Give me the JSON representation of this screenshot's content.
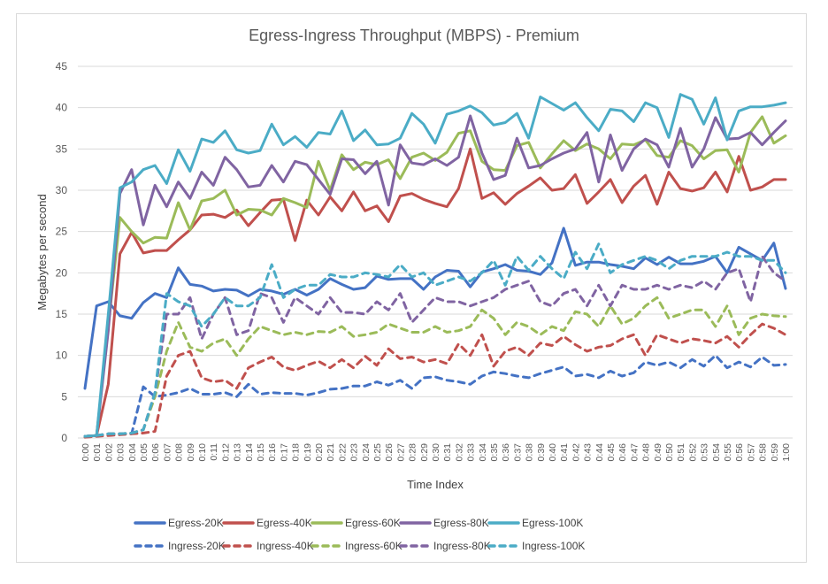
{
  "chart_data": {
    "type": "line",
    "title": "Egress-Ingress Throughput (MBPS) - Premium",
    "xlabel": "Time Index",
    "ylabel": "Megabytes per second",
    "ylim": [
      0,
      45
    ],
    "yticks": [
      0,
      5,
      10,
      15,
      20,
      25,
      30,
      35,
      40,
      45
    ],
    "grid": true,
    "legend_position": "bottom",
    "categories": [
      "0:00",
      "0:01",
      "0:02",
      "0:03",
      "0:04",
      "0:05",
      "0:06",
      "0:07",
      "0:08",
      "0:09",
      "0:10",
      "0:11",
      "0:12",
      "0:13",
      "0:14",
      "0:15",
      "0:16",
      "0:17",
      "0:18",
      "0:19",
      "0:20",
      "0:21",
      "0:22",
      "0:23",
      "0:24",
      "0:25",
      "0:26",
      "0:27",
      "0:28",
      "0:29",
      "0:30",
      "0:31",
      "0:32",
      "0:33",
      "0:34",
      "0:35",
      "0:36",
      "0:37",
      "0:38",
      "0:39",
      "0:40",
      "0:41",
      "0:42",
      "0:43",
      "0:44",
      "0:45",
      "0:46",
      "0:47",
      "0:48",
      "0:49",
      "0:50",
      "0:51",
      "0:52",
      "0:53",
      "0:54",
      "0:55",
      "0:56",
      "0:57",
      "0:58",
      "0:59",
      "1:00"
    ],
    "series": [
      {
        "name": "Egress-20K",
        "color": "#4472C4",
        "dash": false,
        "values": [
          6.0,
          16.0,
          16.5,
          14.8,
          14.5,
          16.4,
          17.5,
          17.0,
          20.6,
          18.6,
          18.4,
          17.8,
          18.0,
          17.9,
          17.2,
          18.0,
          17.8,
          17.4,
          18.0,
          17.3,
          18.0,
          19.3,
          18.6,
          18.0,
          18.2,
          19.6,
          19.2,
          19.3,
          19.3,
          18.0,
          19.5,
          20.3,
          20.2,
          18.3,
          20.1,
          20.5,
          21.0,
          20.3,
          20.2,
          19.8,
          21.2,
          25.4,
          20.9,
          21.3,
          21.3,
          21.0,
          20.8,
          20.5,
          21.8,
          21.0,
          21.9,
          21.1,
          21.1,
          21.4,
          22.0,
          20.0,
          23.1,
          22.3,
          21.5,
          23.6,
          18.1
        ]
      },
      {
        "name": "Egress-40K",
        "color": "#C0504D",
        "dash": false,
        "values": [
          0.2,
          0.3,
          6.5,
          22.3,
          24.9,
          22.4,
          22.7,
          22.7,
          24.0,
          25.2,
          27.0,
          27.1,
          26.7,
          27.6,
          25.7,
          27.3,
          28.8,
          28.9,
          23.9,
          28.8,
          27.0,
          29.2,
          27.5,
          29.8,
          27.5,
          28.1,
          26.2,
          29.3,
          29.6,
          28.9,
          28.4,
          28.0,
          30.2,
          35.0,
          29.0,
          29.7,
          28.3,
          29.6,
          30.5,
          31.5,
          30.0,
          30.2,
          31.9,
          28.4,
          29.8,
          31.3,
          28.5,
          30.5,
          31.8,
          28.3,
          32.2,
          30.2,
          29.9,
          30.3,
          32.2,
          29.8,
          34.1,
          30.0,
          30.4,
          31.3,
          31.3
        ]
      },
      {
        "name": "Egress-60K",
        "color": "#9BBB59",
        "dash": false,
        "values": [
          0.2,
          0.3,
          13.5,
          26.7,
          25.0,
          23.6,
          24.3,
          24.2,
          28.5,
          25.2,
          28.7,
          29.0,
          30.0,
          27.0,
          27.7,
          27.6,
          27.0,
          29.0,
          28.5,
          27.9,
          33.5,
          30.0,
          34.3,
          32.5,
          33.4,
          33.1,
          33.7,
          31.4,
          34.0,
          34.5,
          33.6,
          34.6,
          36.9,
          37.2,
          33.5,
          32.5,
          32.4,
          35.4,
          35.8,
          32.7,
          34.4,
          36.0,
          34.8,
          35.6,
          35.0,
          33.8,
          35.6,
          35.5,
          36.1,
          34.2,
          34.0,
          36.0,
          35.4,
          33.8,
          34.8,
          34.9,
          32.2,
          37.0,
          38.9,
          35.7,
          36.6
        ]
      },
      {
        "name": "Egress-80K",
        "color": "#8064A2",
        "dash": false,
        "values": [
          0.2,
          0.3,
          13.0,
          29.6,
          32.5,
          25.8,
          30.6,
          28.0,
          31.0,
          29.0,
          32.2,
          30.6,
          34.0,
          32.5,
          30.4,
          30.6,
          33.0,
          31.0,
          33.5,
          33.1,
          31.3,
          29.5,
          33.8,
          33.7,
          32.0,
          33.5,
          28.2,
          35.5,
          33.3,
          33.1,
          33.8,
          33.0,
          34.0,
          39.0,
          34.5,
          31.3,
          31.8,
          36.3,
          32.7,
          33.0,
          33.8,
          34.5,
          35.0,
          37.0,
          31.0,
          36.7,
          32.4,
          35.0,
          36.2,
          35.5,
          32.8,
          37.5,
          32.8,
          35.0,
          38.8,
          36.2,
          36.3,
          37.0,
          35.5,
          37.0,
          38.4
        ]
      },
      {
        "name": "Egress-100K",
        "color": "#4BACC6",
        "dash": false,
        "values": [
          0.2,
          0.3,
          15.0,
          30.3,
          31.0,
          32.5,
          33.0,
          30.8,
          34.9,
          32.3,
          36.2,
          35.8,
          37.2,
          34.9,
          34.5,
          34.8,
          38.0,
          35.5,
          36.5,
          35.2,
          37.0,
          36.8,
          39.6,
          36.0,
          37.3,
          35.5,
          35.6,
          36.3,
          39.3,
          38.0,
          35.7,
          39.2,
          39.6,
          40.2,
          39.4,
          37.9,
          38.2,
          39.3,
          36.3,
          41.3,
          40.5,
          39.7,
          40.6,
          38.8,
          37.2,
          39.8,
          39.6,
          38.3,
          40.6,
          40.0,
          36.4,
          41.6,
          41.0,
          38.0,
          41.2,
          36.1,
          39.6,
          40.1,
          40.1,
          40.3,
          40.6
        ]
      },
      {
        "name": "Ingress-20K",
        "color": "#4472C4",
        "dash": true,
        "values": [
          0.2,
          0.3,
          0.5,
          0.5,
          0.5,
          6.2,
          5.0,
          5.2,
          5.5,
          6.0,
          5.3,
          5.3,
          5.5,
          5.0,
          6.5,
          5.3,
          5.5,
          5.4,
          5.4,
          5.2,
          5.5,
          5.9,
          6.0,
          6.3,
          6.3,
          6.8,
          6.4,
          7.0,
          6.0,
          7.3,
          7.4,
          7.0,
          6.8,
          6.5,
          7.5,
          8.0,
          7.8,
          7.5,
          7.3,
          7.8,
          8.2,
          8.6,
          7.5,
          7.7,
          7.3,
          8.1,
          7.5,
          7.9,
          9.2,
          8.8,
          9.2,
          8.5,
          9.5,
          8.7,
          10.0,
          8.5,
          9.2,
          8.6,
          9.8,
          8.8,
          8.9
        ]
      },
      {
        "name": "Ingress-40K",
        "color": "#C0504D",
        "dash": true,
        "values": [
          0.1,
          0.2,
          0.3,
          0.4,
          0.5,
          0.6,
          0.8,
          7.5,
          10.0,
          10.5,
          7.3,
          6.8,
          7.0,
          6.0,
          8.5,
          9.2,
          9.8,
          8.6,
          8.2,
          8.8,
          9.3,
          8.5,
          9.5,
          8.5,
          9.9,
          8.8,
          10.8,
          9.6,
          9.8,
          9.2,
          9.5,
          9.0,
          11.4,
          10.0,
          12.5,
          8.7,
          10.5,
          11.0,
          10.0,
          11.5,
          11.2,
          12.3,
          11.3,
          10.5,
          11.0,
          11.2,
          12.0,
          12.5,
          10.0,
          12.5,
          12.0,
          11.5,
          12.0,
          11.8,
          11.5,
          12.3,
          11.0,
          12.5,
          13.8,
          13.3,
          12.5
        ]
      },
      {
        "name": "Ingress-60K",
        "color": "#9BBB59",
        "dash": true,
        "values": [
          0.2,
          0.3,
          0.5,
          0.5,
          0.6,
          1.0,
          5.0,
          10.5,
          14.0,
          11.0,
          10.5,
          11.5,
          12.0,
          10.0,
          12.0,
          13.5,
          13.0,
          12.5,
          12.8,
          12.5,
          12.9,
          12.8,
          13.5,
          12.3,
          12.5,
          12.8,
          13.8,
          13.3,
          12.8,
          12.8,
          13.5,
          12.8,
          13.0,
          13.5,
          15.5,
          14.5,
          12.5,
          14.0,
          13.5,
          12.5,
          13.5,
          13.0,
          15.3,
          15.0,
          13.5,
          16.0,
          13.8,
          14.5,
          16.0,
          17.0,
          14.5,
          15.0,
          15.5,
          15.5,
          13.5,
          16.0,
          12.5,
          14.5,
          15.0,
          14.8,
          14.7
        ]
      },
      {
        "name": "Ingress-80K",
        "color": "#8064A2",
        "dash": true,
        "values": [
          0.2,
          0.3,
          0.5,
          0.5,
          0.6,
          1.0,
          5.5,
          15.0,
          15.0,
          17.0,
          12.0,
          15.0,
          17.0,
          12.5,
          13.0,
          17.5,
          17.0,
          14.0,
          17.0,
          16.0,
          15.0,
          17.0,
          15.2,
          15.2,
          15.0,
          16.5,
          15.5,
          17.5,
          14.0,
          15.5,
          17.0,
          16.5,
          16.5,
          16.0,
          16.5,
          17.0,
          18.0,
          18.5,
          19.0,
          16.5,
          16.0,
          17.5,
          18.0,
          16.0,
          18.5,
          16.0,
          18.5,
          18.0,
          18.0,
          18.5,
          18.0,
          18.5,
          18.2,
          19.0,
          18.0,
          20.0,
          20.5,
          16.5,
          22.0,
          20.0,
          19.0
        ]
      },
      {
        "name": "Ingress-100K",
        "color": "#4BACC6",
        "dash": true,
        "values": [
          0.2,
          0.3,
          0.5,
          0.5,
          0.6,
          1.0,
          5.5,
          17.5,
          16.5,
          16.0,
          13.5,
          15.0,
          17.0,
          16.0,
          16.0,
          17.0,
          21.0,
          17.0,
          18.0,
          18.5,
          18.5,
          19.8,
          19.5,
          19.5,
          20.0,
          19.8,
          19.5,
          21.0,
          19.5,
          20.0,
          18.5,
          19.0,
          19.5,
          19.0,
          20.0,
          21.5,
          18.5,
          22.0,
          20.3,
          22.0,
          20.5,
          19.3,
          22.5,
          20.5,
          23.5,
          20.0,
          21.0,
          21.5,
          22.0,
          21.5,
          20.5,
          21.5,
          22.0,
          22.0,
          22.0,
          22.5,
          22.0,
          22.0,
          21.5,
          21.5,
          20.0
        ]
      }
    ]
  }
}
